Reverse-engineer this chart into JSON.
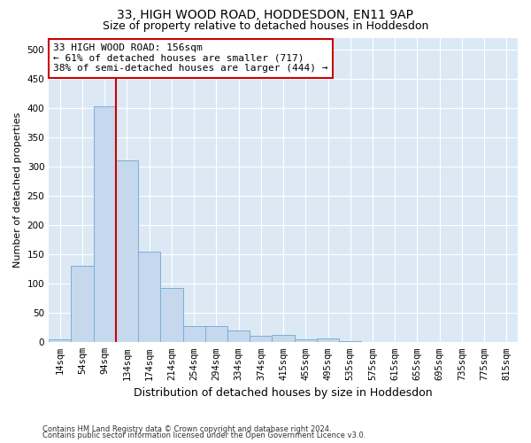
{
  "title_line1": "33, HIGH WOOD ROAD, HODDESDON, EN11 9AP",
  "title_line2": "Size of property relative to detached houses in Hoddesdon",
  "xlabel": "Distribution of detached houses by size in Hoddesdon",
  "ylabel": "Number of detached properties",
  "footer_line1": "Contains HM Land Registry data © Crown copyright and database right 2024.",
  "footer_line2": "Contains public sector information licensed under the Open Government Licence v3.0.",
  "bar_labels": [
    "14sqm",
    "54sqm",
    "94sqm",
    "134sqm",
    "174sqm",
    "214sqm",
    "254sqm",
    "294sqm",
    "334sqm",
    "374sqm",
    "415sqm",
    "455sqm",
    "495sqm",
    "535sqm",
    "575sqm",
    "615sqm",
    "655sqm",
    "695sqm",
    "735sqm",
    "775sqm",
    "815sqm"
  ],
  "bar_values": [
    5,
    130,
    403,
    310,
    155,
    93,
    28,
    28,
    20,
    11,
    12,
    5,
    6,
    2,
    1,
    0,
    0,
    0,
    1,
    0,
    1
  ],
  "bar_color": "#c5d8ee",
  "bar_edge_color": "#7bafd4",
  "vline_color": "#cc0000",
  "ylim": [
    0,
    520
  ],
  "yticks": [
    0,
    50,
    100,
    150,
    200,
    250,
    300,
    350,
    400,
    450,
    500
  ],
  "annotation_line1": "33 HIGH WOOD ROAD: 156sqm",
  "annotation_line2": "← 61% of detached houses are smaller (717)",
  "annotation_line3": "38% of semi-detached houses are larger (444) →",
  "annotation_box_color": "#ffffff",
  "annotation_box_edge_color": "#cc0000",
  "fig_bg_color": "#ffffff",
  "plot_bg_color": "#dce9f5",
  "grid_color": "#ffffff",
  "title_fontsize": 10,
  "subtitle_fontsize": 9,
  "tick_fontsize": 7.5,
  "ylabel_fontsize": 8,
  "xlabel_fontsize": 9,
  "footer_fontsize": 6,
  "annot_fontsize": 8
}
